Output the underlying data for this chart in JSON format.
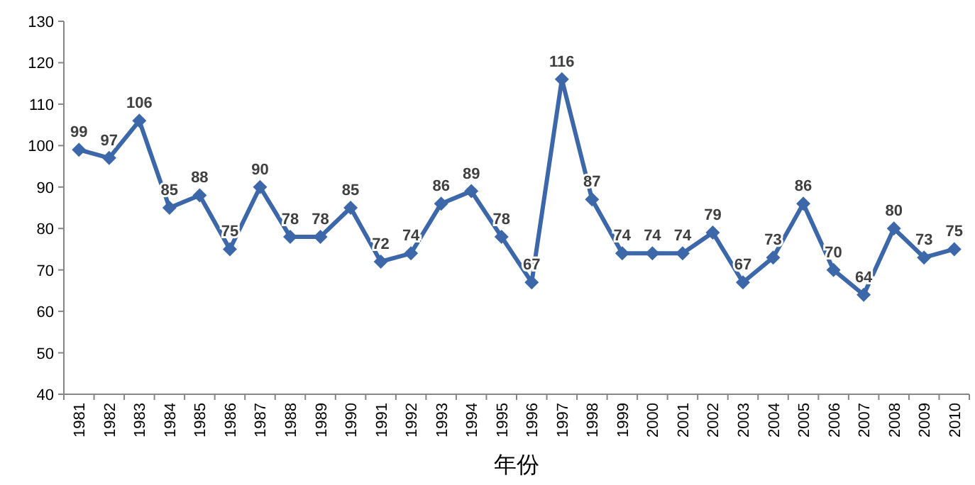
{
  "chart_data": {
    "type": "line",
    "xlabel": "年份",
    "categories": [
      "1981",
      "1982",
      "1983",
      "1984",
      "1985",
      "1986",
      "1987",
      "1988",
      "1989",
      "1990",
      "1991",
      "1992",
      "1993",
      "1994",
      "1995",
      "1996",
      "1997",
      "1998",
      "1999",
      "2000",
      "2001",
      "2002",
      "2003",
      "2004",
      "2005",
      "2006",
      "2007",
      "2008",
      "2009",
      "2010"
    ],
    "series": [
      {
        "color": "#3c67a8",
        "values": [
          99,
          97,
          106,
          85,
          88,
          75,
          90,
          78,
          78,
          85,
          72,
          74,
          86,
          89,
          78,
          67,
          116,
          87,
          74,
          74,
          74,
          79,
          67,
          73,
          86,
          70,
          64,
          80,
          73,
          75
        ]
      }
    ],
    "ylim": [
      40,
      130
    ],
    "yticks": [
      40,
      50,
      60,
      70,
      80,
      90,
      100,
      110,
      120,
      130
    ],
    "data_labels": true,
    "marker": "diamond",
    "line_style": "solid"
  }
}
